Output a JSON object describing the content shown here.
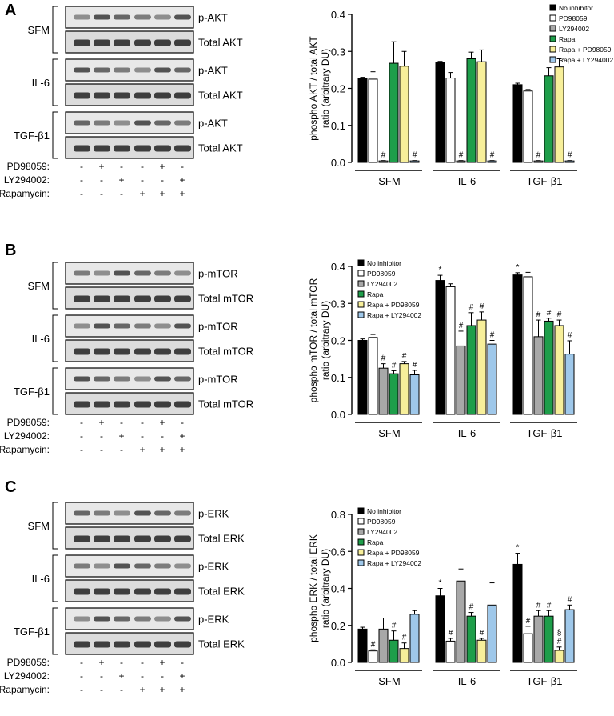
{
  "groups": [
    "SFM",
    "IL-6",
    "TGF-β1"
  ],
  "treatments": {
    "rows": [
      {
        "label": "PD98059:",
        "signs": [
          "-",
          "+",
          "-",
          "-",
          "+",
          "-"
        ]
      },
      {
        "label": "LY294002:",
        "signs": [
          "-",
          "-",
          "+",
          "-",
          "-",
          "+"
        ]
      },
      {
        "label": "Rapamycin:",
        "signs": [
          "-",
          "-",
          "-",
          "+",
          "+",
          "+"
        ]
      }
    ]
  },
  "legend": [
    "No inhibitor",
    "PD98059",
    "LY294002",
    "Rapa",
    "Rapa + PD98059",
    "Rapa + LY294002"
  ],
  "colors": {
    "series": [
      "#000000",
      "#ffffff",
      "#a8a8a8",
      "#1e9e4a",
      "#f7ef9a",
      "#9fc8ea"
    ]
  },
  "panels": [
    {
      "letter": "A",
      "blot_labels": [
        "p-AKT",
        "Total AKT"
      ],
      "chart_data": {
        "type": "bar",
        "categories": [
          "SFM",
          "IL-6",
          "TGF-β1"
        ],
        "ylabel": "phospho AKT / total AKT ratio (arbitrary DU)",
        "ylim": [
          0,
          0.4
        ],
        "yticks": [
          "0.0",
          "0.1",
          "0.2",
          "0.3",
          "0.4"
        ],
        "legend_position": "top-right",
        "series": [
          {
            "name": "No inhibitor",
            "values": [
              0.226,
              0.27,
              0.21
            ],
            "err": [
              0.004,
              0.003,
              0.004
            ],
            "marks": [
              "",
              "",
              ""
            ]
          },
          {
            "name": "PD98059",
            "values": [
              0.225,
              0.228,
              0.193
            ],
            "err": [
              0.02,
              0.015,
              0.004
            ],
            "marks": [
              "",
              "",
              ""
            ]
          },
          {
            "name": "LY294002",
            "values": [
              0.004,
              0.004,
              0.004
            ],
            "err": [
              0.001,
              0.001,
              0.001
            ],
            "marks": [
              "#",
              "#",
              "#"
            ]
          },
          {
            "name": "Rapa",
            "values": [
              0.268,
              0.28,
              0.234
            ],
            "err": [
              0.058,
              0.018,
              0.022
            ],
            "marks": [
              "",
              "",
              ""
            ]
          },
          {
            "name": "Rapa + PD98059",
            "values": [
              0.26,
              0.272,
              0.258
            ],
            "err": [
              0.04,
              0.032,
              0.022
            ],
            "marks": [
              "",
              "",
              ""
            ]
          },
          {
            "name": "Rapa + LY294002",
            "values": [
              0.004,
              0.004,
              0.004
            ],
            "err": [
              0.001,
              0.001,
              0.001
            ],
            "marks": [
              "#",
              "#",
              "#"
            ]
          }
        ]
      }
    },
    {
      "letter": "B",
      "blot_labels": [
        "p-mTOR",
        "Total mTOR"
      ],
      "chart_data": {
        "type": "bar",
        "categories": [
          "SFM",
          "IL-6",
          "TGF-β1"
        ],
        "ylabel": "phospho mTOR / total mTOR ratio (arbitrary DU)",
        "ylim": [
          0,
          0.4
        ],
        "yticks": [
          "0.0",
          "0.1",
          "0.2",
          "0.3",
          "0.4"
        ],
        "legend_position": "top-left",
        "series": [
          {
            "name": "No inhibitor",
            "values": [
              0.2,
              0.362,
              0.377
            ],
            "err": [
              0.004,
              0.014,
              0.006
            ],
            "marks": [
              "",
              "*",
              "*"
            ]
          },
          {
            "name": "PD98059",
            "values": [
              0.208,
              0.345,
              0.372
            ],
            "err": [
              0.008,
              0.008,
              0.012
            ],
            "marks": [
              "",
              "",
              ""
            ]
          },
          {
            "name": "LY294002",
            "values": [
              0.125,
              0.185,
              0.21
            ],
            "err": [
              0.012,
              0.04,
              0.045
            ],
            "marks": [
              "#",
              "#",
              "#"
            ]
          },
          {
            "name": "Rapa",
            "values": [
              0.11,
              0.24,
              0.252
            ],
            "err": [
              0.008,
              0.035,
              0.008
            ],
            "marks": [
              "#",
              "#",
              "#"
            ]
          },
          {
            "name": "Rapa + PD98059",
            "values": [
              0.137,
              0.255,
              0.24
            ],
            "err": [
              0.006,
              0.022,
              0.015
            ],
            "marks": [
              "#",
              "#",
              "#"
            ]
          },
          {
            "name": "Rapa + LY294002",
            "values": [
              0.107,
              0.19,
              0.163
            ],
            "err": [
              0.012,
              0.01,
              0.036
            ],
            "marks": [
              "#",
              "#",
              "#"
            ]
          }
        ]
      }
    },
    {
      "letter": "C",
      "blot_labels": [
        "p-ERK",
        "Total ERK"
      ],
      "chart_data": {
        "type": "bar",
        "categories": [
          "SFM",
          "IL-6",
          "TGF-β1"
        ],
        "ylabel": "phospho ERK / total ERK ratio (arbitrary DU)",
        "ylim": [
          0,
          0.8
        ],
        "yticks": [
          "0.0",
          "0.2",
          "0.4",
          "0.6",
          "0.8"
        ],
        "legend_position": "top-left",
        "series": [
          {
            "name": "No inhibitor",
            "values": [
              0.18,
              0.36,
              0.53
            ],
            "err": [
              0.01,
              0.04,
              0.06
            ],
            "marks": [
              "",
              "*",
              "*"
            ]
          },
          {
            "name": "PD98059",
            "values": [
              0.062,
              0.115,
              0.155
            ],
            "err": [
              0.006,
              0.015,
              0.04
            ],
            "marks": [
              "#",
              "#",
              "#"
            ]
          },
          {
            "name": "LY294002",
            "values": [
              0.18,
              0.44,
              0.25
            ],
            "err": [
              0.06,
              0.065,
              0.03
            ],
            "marks": [
              "",
              "",
              "#"
            ]
          },
          {
            "name": "Rapa",
            "values": [
              0.12,
              0.25,
              0.25
            ],
            "err": [
              0.05,
              0.02,
              0.03
            ],
            "marks": [
              "#",
              "#",
              "#"
            ]
          },
          {
            "name": "Rapa + PD98059",
            "values": [
              0.075,
              0.12,
              0.065
            ],
            "err": [
              0.03,
              0.01,
              0.018
            ],
            "marks": [
              "#",
              "#",
              "§\n#"
            ]
          },
          {
            "name": "Rapa + LY294002",
            "values": [
              0.26,
              0.31,
              0.285
            ],
            "err": [
              0.02,
              0.12,
              0.025
            ],
            "marks": [
              "",
              "",
              "#"
            ]
          }
        ]
      }
    }
  ]
}
